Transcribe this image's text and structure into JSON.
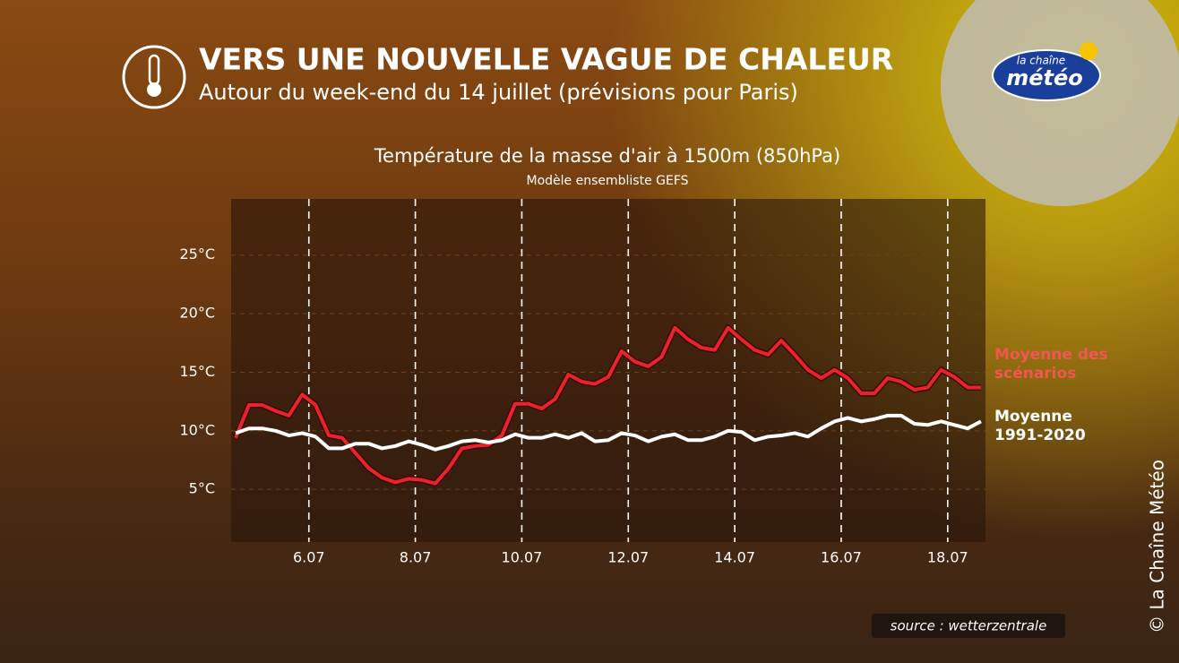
{
  "header": {
    "title": "VERS UNE NOUVELLE VAGUE DE CHALEUR",
    "subtitle": "Autour du week-end du 14 juillet (prévisions pour Paris)"
  },
  "logo": {
    "top": "la chaîne",
    "bottom": "météo"
  },
  "source": "source : wetterzentrale",
  "copyright": "© La Chaîne Météo",
  "chart_data": {
    "type": "line",
    "title": "Température de la masse d'air à 1500m (850hPa)",
    "subtitle": "Modèle ensembliste GEFS",
    "x": [
      4.625,
      4.875,
      5.125,
      5.375,
      5.625,
      5.875,
      6.125,
      6.375,
      6.625,
      6.875,
      7.125,
      7.375,
      7.625,
      7.875,
      8.125,
      8.375,
      8.625,
      8.875,
      9.125,
      9.375,
      9.625,
      9.875,
      10.125,
      10.375,
      10.625,
      10.875,
      11.125,
      11.375,
      11.625,
      11.875,
      12.125,
      12.375,
      12.625,
      12.875,
      13.125,
      13.375,
      13.625,
      13.875,
      14.125,
      14.375,
      14.625,
      14.875,
      15.125,
      15.375,
      15.625,
      15.875,
      16.125,
      16.375,
      16.625,
      16.875,
      17.125,
      17.375,
      17.625,
      17.875,
      18.125,
      18.375,
      18.625
    ],
    "series": [
      {
        "name": "Moyenne des scénarios",
        "color": "#e8242a",
        "values": [
          9.4,
          12.2,
          12.2,
          11.7,
          11.3,
          13.1,
          12.2,
          9.6,
          9.4,
          8.1,
          6.8,
          6.0,
          5.6,
          5.9,
          5.8,
          5.5,
          6.8,
          8.5,
          8.7,
          8.8,
          9.6,
          12.3,
          12.3,
          11.9,
          12.7,
          14.8,
          14.2,
          14.0,
          14.6,
          16.8,
          15.9,
          15.5,
          16.3,
          18.8,
          17.8,
          17.1,
          16.9,
          18.8,
          17.8,
          16.9,
          16.5,
          17.7,
          16.5,
          15.2,
          14.5,
          15.2,
          14.5,
          13.2,
          13.2,
          14.5,
          14.2,
          13.5,
          13.7,
          15.2,
          14.6,
          13.7,
          13.7
        ]
      },
      {
        "name": "Moyenne 1991-2020",
        "color": "#ffffff",
        "values": [
          9.8,
          10.2,
          10.2,
          10.0,
          9.6,
          9.8,
          9.5,
          8.5,
          8.5,
          8.9,
          8.9,
          8.5,
          8.7,
          9.1,
          8.8,
          8.4,
          8.7,
          9.1,
          9.2,
          9.0,
          9.2,
          9.7,
          9.4,
          9.4,
          9.7,
          9.4,
          9.8,
          9.1,
          9.2,
          9.8,
          9.6,
          9.1,
          9.5,
          9.7,
          9.2,
          9.2,
          9.5,
          10.0,
          9.9,
          9.2,
          9.5,
          9.6,
          9.8,
          9.5,
          10.2,
          10.8,
          11.1,
          10.8,
          11.0,
          11.3,
          11.3,
          10.6,
          10.5,
          10.8,
          10.5,
          10.2,
          10.8
        ]
      }
    ],
    "xlim": [
      4.54,
      18.71
    ],
    "xticks": [
      {
        "value": 6,
        "label": "6.07"
      },
      {
        "value": 8,
        "label": "8.07"
      },
      {
        "value": 10,
        "label": "10.07"
      },
      {
        "value": 12,
        "label": "12.07"
      },
      {
        "value": 14,
        "label": "14.07"
      },
      {
        "value": 16,
        "label": "16.07"
      },
      {
        "value": 18,
        "label": "18.07"
      }
    ],
    "ylim": [
      0.5,
      29.8
    ],
    "yticks": [
      {
        "value": 5,
        "label": "5°C"
      },
      {
        "value": 10,
        "label": "10°C"
      },
      {
        "value": 15,
        "label": "15°C"
      },
      {
        "value": 20,
        "label": "20°C"
      },
      {
        "value": 25,
        "label": "25°C"
      }
    ],
    "grid": true
  }
}
